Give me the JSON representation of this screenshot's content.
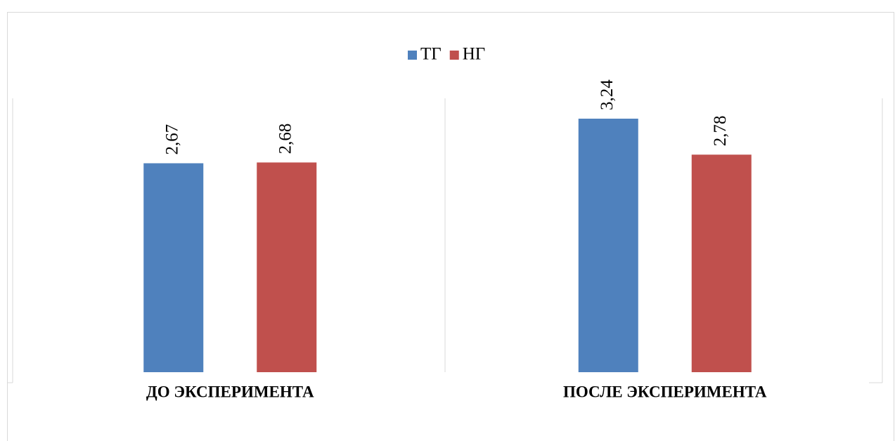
{
  "chart_data": {
    "type": "bar",
    "categories": [
      "ДО ЭКСПЕРИМЕНТА",
      "ПОСЛЕ ЭКСПЕРИМЕНТА"
    ],
    "series": [
      {
        "name": "ТГ",
        "color": "#4f81bd",
        "values": [
          2.67,
          3.24
        ],
        "value_labels": [
          "2,67",
          "3,24"
        ]
      },
      {
        "name": "НГ",
        "color": "#c0504d",
        "values": [
          2.68,
          2.78
        ],
        "value_labels": [
          "2,68",
          "2,78"
        ]
      }
    ],
    "ylim": [
      0,
      3.5
    ],
    "legend": "top"
  }
}
